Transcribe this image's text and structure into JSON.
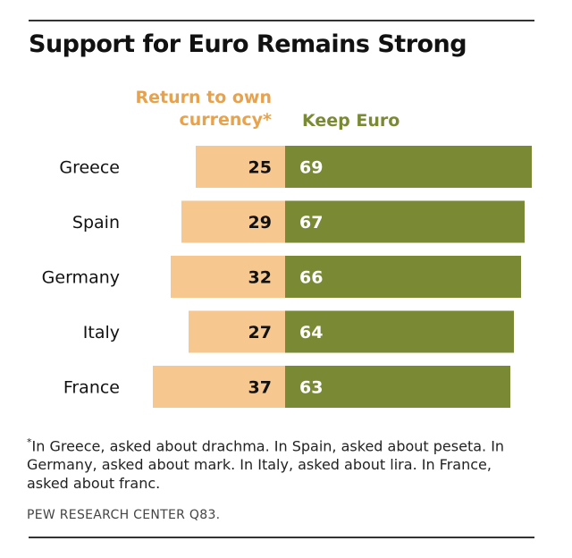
{
  "chart_data": {
    "type": "bar",
    "title": "Support for Euro Remains Strong",
    "categories": [
      "Greece",
      "Spain",
      "Germany",
      "Italy",
      "France"
    ],
    "series": [
      {
        "name": "Return to own currency*",
        "values": [
          25,
          29,
          32,
          27,
          37
        ],
        "color": "#f6c88f"
      },
      {
        "name": "Keep Euro",
        "values": [
          69,
          67,
          66,
          64,
          63
        ],
        "color": "#7a8a34"
      }
    ],
    "xlabel": "",
    "ylabel": ""
  },
  "headers": {
    "return_line1": "Return to own",
    "return_line2": "currency*",
    "keep": "Keep Euro"
  },
  "colors": {
    "return_text": "#e8a24b",
    "keep_text": "#7a8a34",
    "return_bar": "#f6c88f",
    "keep_bar": "#7a8a34"
  },
  "footnote": {
    "star": "*",
    "text": "In Greece, asked about drachma. In Spain, asked about peseta. In Germany, asked about mark. In Italy, asked about lira. In France, asked about franc."
  },
  "source": "PEW RESEARCH CENTER Q83."
}
